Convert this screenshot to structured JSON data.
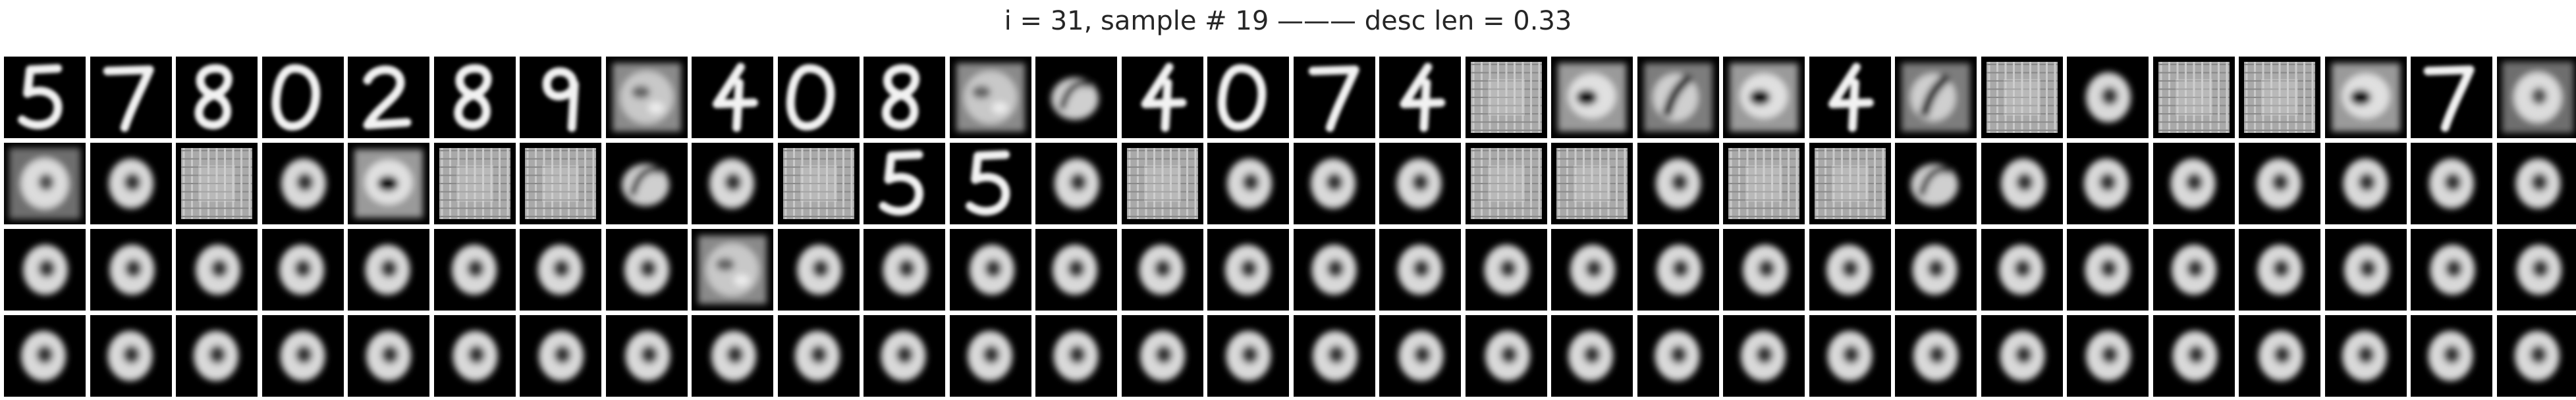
{
  "figure": {
    "title": "i = 31, sample # 19 ——— desc len = 0.33"
  },
  "grid": {
    "rows": 4,
    "cols": 30,
    "tiles": [
      [
        "digit-5",
        "digit-7",
        "digit-8",
        "digit-0",
        "digit-2",
        "digit-8",
        "digit-9",
        "noisy-patch",
        "digit-4",
        "digit-0",
        "digit-8",
        "noisy-patch",
        "blob-ring",
        "digit-4",
        "digit-0",
        "digit-7",
        "digit-4",
        "grid-texture",
        "blob-dark-center",
        "blob",
        "blob-dark-center",
        "digit-4",
        "blob",
        "grid-texture",
        "ring",
        "grid-texture",
        "grid-texture",
        "blob-dark-center",
        "digit-7",
        "noisy-ring"
      ],
      [
        "noisy-ring",
        "ring",
        "grid-texture",
        "ring",
        "blob-dark-center",
        "grid-texture",
        "grid-texture",
        "blob-ring",
        "ring",
        "grid-texture",
        "digit-5",
        "digit-5",
        "ring",
        "grid-texture",
        "ring",
        "ring",
        "ring",
        "grid-texture",
        "grid-texture",
        "ring",
        "grid-texture",
        "grid-texture",
        "blob-ring",
        "ring",
        "ring",
        "ring",
        "ring",
        "ring",
        "ring",
        "ring"
      ],
      [
        "ring",
        "ring",
        "ring",
        "ring",
        "ring",
        "ring",
        "ring",
        "ring",
        "noisy-patch",
        "ring",
        "ring",
        "ring",
        "ring",
        "ring",
        "ring",
        "ring",
        "ring",
        "ring",
        "ring",
        "ring",
        "ring",
        "ring",
        "ring",
        "ring",
        "ring",
        "ring",
        "ring",
        "ring",
        "ring",
        "ring"
      ],
      [
        "ring",
        "ring",
        "ring",
        "ring",
        "ring",
        "ring",
        "ring",
        "ring",
        "ring",
        "ring",
        "ring",
        "ring",
        "ring",
        "ring",
        "ring",
        "ring",
        "ring",
        "ring",
        "ring",
        "ring",
        "ring",
        "ring",
        "ring",
        "ring",
        "ring",
        "ring",
        "ring",
        "ring",
        "ring",
        "ring"
      ]
    ]
  }
}
